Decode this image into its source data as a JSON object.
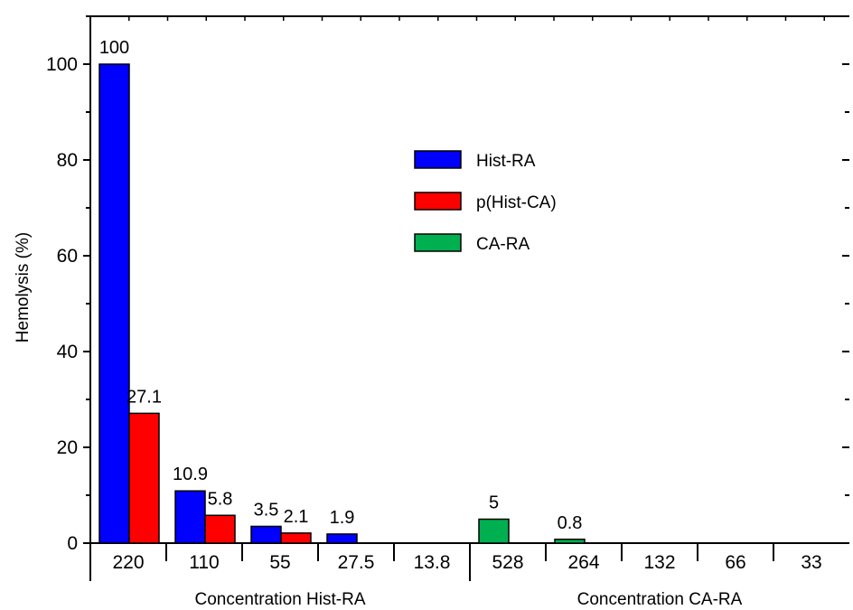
{
  "chart_data": {
    "type": "bar",
    "ylabel": "Hemolysis (%)",
    "ylim": [
      0,
      110
    ],
    "yticks": [
      0,
      20,
      40,
      60,
      80,
      100
    ],
    "grid": false,
    "legend_position": "center",
    "groups": [
      {
        "title": "Concentration Hist-RA",
        "categories": [
          "220",
          "110",
          "55",
          "27.5",
          "13.8"
        ]
      },
      {
        "title": "Concentration CA-RA",
        "categories": [
          "528",
          "264",
          "132",
          "66",
          "33"
        ]
      }
    ],
    "series": [
      {
        "name": "Hist-RA",
        "color": "#0000ff",
        "values": [
          100,
          10.9,
          3.5,
          1.9,
          null,
          null,
          null,
          null,
          null,
          null
        ],
        "labels": [
          "100",
          "10.9",
          "3.5",
          "1.9",
          null,
          null,
          null,
          null,
          null,
          null
        ]
      },
      {
        "name": "p(Hist-CA)",
        "color": "#ff0000",
        "values": [
          27.1,
          5.8,
          2.1,
          null,
          null,
          null,
          null,
          null,
          null,
          null
        ],
        "labels": [
          "27.1",
          "5.8",
          "2.1",
          null,
          null,
          null,
          null,
          null,
          null,
          null
        ]
      },
      {
        "name": "CA-RA",
        "color": "#00b050",
        "values": [
          null,
          null,
          null,
          null,
          null,
          5,
          0.8,
          null,
          null,
          null
        ],
        "labels": [
          null,
          null,
          null,
          null,
          null,
          "5",
          "0.8",
          null,
          null,
          null
        ]
      }
    ]
  }
}
